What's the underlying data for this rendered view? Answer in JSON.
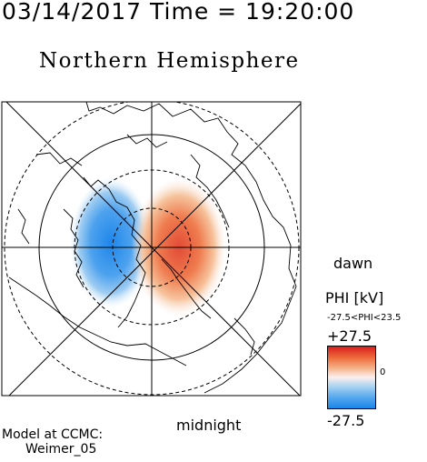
{
  "header": {
    "datetime": "03/14/2017 Time = 19:20:00",
    "hemisphere": "Northern Hemisphere"
  },
  "map": {
    "labels": {
      "right": "dawn",
      "bottom": "midnight"
    },
    "colors": {
      "positive": "#e8503a",
      "negative": "#2b8fe8",
      "lines": "#000000"
    }
  },
  "colorbar": {
    "title": "PHI [kV]",
    "range_text": "-27.5<PHI<23.5",
    "max_label": "+27.5",
    "min_label": "-27.5",
    "zero_label": "0"
  },
  "model": {
    "line1": "Model at CCMC:",
    "line2": "Weimer_05"
  }
}
